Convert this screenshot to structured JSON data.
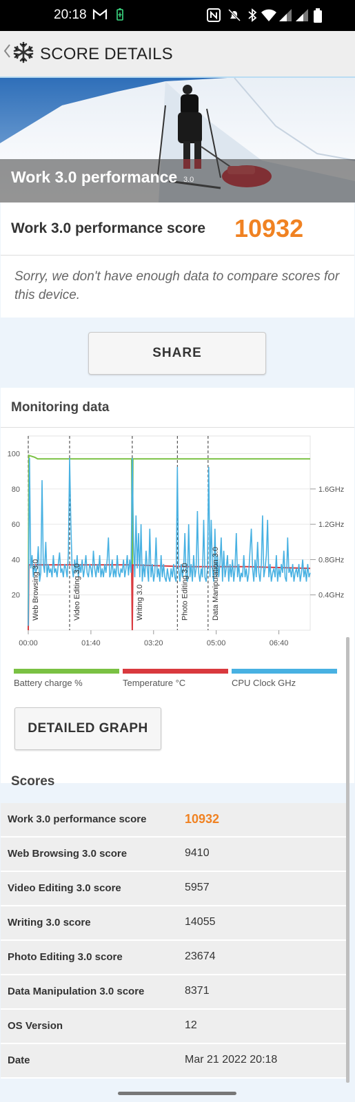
{
  "status_bar": {
    "time": "20:18",
    "icons": [
      "gmail-icon",
      "battery-saver-icon",
      "nfc-icon",
      "mute-icon",
      "bluetooth-icon",
      "wifi-icon",
      "signal-icon",
      "signal-icon",
      "battery-icon"
    ]
  },
  "app_bar": {
    "title": "SCORE DETAILS",
    "back_icon": "chevron-left-icon",
    "logo_icon": "snowflake-icon"
  },
  "hero": {
    "title": "Work 3.0 performance",
    "version": "3.0"
  },
  "score": {
    "label": "Work 3.0 performance score",
    "value": "10932"
  },
  "note": "Sorry, we don't have enough data to compare scores for this device.",
  "share_label": "SHARE",
  "monitoring": {
    "title": "Monitoring data",
    "detailed_graph_label": "DETAILED GRAPH",
    "legend": [
      {
        "label": "Battery charge %",
        "color": "#7ac143"
      },
      {
        "label": "Temperature °C",
        "color": "#d9393e"
      },
      {
        "label": "CPU Clock GHz",
        "color": "#48b1e2"
      }
    ]
  },
  "chart_data": {
    "type": "line",
    "x_ticks": [
      "00:00",
      "01:40",
      "03:20",
      "05:00",
      "06:40"
    ],
    "x_range_seconds": [
      0,
      450
    ],
    "y_left_ticks": [
      "20",
      "40",
      "60",
      "80",
      "100"
    ],
    "y_left_range": [
      0,
      110
    ],
    "y_right_ticks": [
      "0.4GHz",
      "0.8GHz",
      "1.2GHz",
      "1.6GHz"
    ],
    "y_right_range_ghz": [
      0,
      2.2
    ],
    "annotations": [
      {
        "label": "Web Browsing 3.0",
        "x_seconds": 0
      },
      {
        "label": "Video Editing 3.0",
        "x_seconds": 66
      },
      {
        "label": "Writing 3.0",
        "x_seconds": 166
      },
      {
        "label": "Photo Editing 3.0",
        "x_seconds": 238
      },
      {
        "label": "Data Manipulation 3.0",
        "x_seconds": 287
      }
    ],
    "series": [
      {
        "name": "Battery charge %",
        "color": "#7ac143",
        "points": [
          [
            0,
            0
          ],
          [
            1,
            99
          ],
          [
            10,
            98
          ],
          [
            15,
            97
          ],
          [
            165,
            97
          ],
          [
            166,
            15
          ],
          [
            167,
            97
          ],
          [
            450,
            97
          ]
        ]
      },
      {
        "name": "Temperature °C",
        "color": "#d9393e",
        "points": [
          [
            0,
            0
          ],
          [
            1,
            37
          ],
          [
            60,
            37
          ],
          [
            100,
            37
          ],
          [
            165,
            37
          ],
          [
            166,
            0
          ],
          [
            167,
            37
          ],
          [
            250,
            36
          ],
          [
            350,
            36
          ],
          [
            450,
            35
          ]
        ]
      },
      {
        "name": "CPU Clock GHz",
        "color": "#48b1e2",
        "points": [
          [
            0,
            0.05
          ],
          [
            2,
            1.95
          ],
          [
            4,
            0.7
          ],
          [
            6,
            0.85
          ],
          [
            8,
            0.6
          ],
          [
            10,
            0.75
          ],
          [
            12,
            0.65
          ],
          [
            14,
            0.7
          ],
          [
            16,
            0.95
          ],
          [
            18,
            0.55
          ],
          [
            20,
            0.65
          ],
          [
            22,
            1.7
          ],
          [
            24,
            0.75
          ],
          [
            26,
            0.65
          ],
          [
            28,
            1.0
          ],
          [
            30,
            0.6
          ],
          [
            32,
            0.75
          ],
          [
            34,
            0.65
          ],
          [
            36,
            0.7
          ],
          [
            38,
            0.6
          ],
          [
            40,
            0.85
          ],
          [
            42,
            0.65
          ],
          [
            44,
            0.7
          ],
          [
            46,
            0.6
          ],
          [
            48,
            0.75
          ],
          [
            50,
            0.88
          ],
          [
            52,
            0.65
          ],
          [
            54,
            0.7
          ],
          [
            56,
            0.6
          ],
          [
            58,
            0.75
          ],
          [
            60,
            0.7
          ],
          [
            62,
            0.6
          ],
          [
            64,
            0.88
          ],
          [
            66,
            1.95
          ],
          [
            68,
            1.2
          ],
          [
            70,
            0.7
          ],
          [
            72,
            0.6
          ],
          [
            74,
            0.8
          ],
          [
            76,
            0.65
          ],
          [
            78,
            0.85
          ],
          [
            80,
            0.6
          ],
          [
            82,
            0.75
          ],
          [
            84,
            0.65
          ],
          [
            86,
            0.8
          ],
          [
            88,
            0.6
          ],
          [
            90,
            0.7
          ],
          [
            92,
            0.85
          ],
          [
            94,
            0.65
          ],
          [
            96,
            0.6
          ],
          [
            98,
            0.75
          ],
          [
            100,
            0.7
          ],
          [
            102,
            0.6
          ],
          [
            104,
            0.9
          ],
          [
            106,
            0.7
          ],
          [
            108,
            0.6
          ],
          [
            110,
            0.75
          ],
          [
            112,
            0.65
          ],
          [
            114,
            0.85
          ],
          [
            116,
            0.6
          ],
          [
            118,
            0.7
          ],
          [
            120,
            0.6
          ],
          [
            122,
            0.75
          ],
          [
            124,
            0.65
          ],
          [
            126,
            0.8
          ],
          [
            128,
            1.05
          ],
          [
            130,
            0.6
          ],
          [
            132,
            0.65
          ],
          [
            134,
            0.8
          ],
          [
            136,
            0.6
          ],
          [
            138,
            0.7
          ],
          [
            140,
            0.6
          ],
          [
            142,
            0.85
          ],
          [
            144,
            0.65
          ],
          [
            146,
            0.6
          ],
          [
            148,
            0.7
          ],
          [
            150,
            0.65
          ],
          [
            152,
            0.8
          ],
          [
            154,
            0.6
          ],
          [
            156,
            0.7
          ],
          [
            158,
            0.85
          ],
          [
            160,
            0.62
          ],
          [
            162,
            0.8
          ],
          [
            164,
            0.65
          ],
          [
            166,
            1.95
          ],
          [
            168,
            1.0
          ],
          [
            170,
            0.6
          ],
          [
            172,
            1.3
          ],
          [
            174,
            0.7
          ],
          [
            176,
            1.1
          ],
          [
            178,
            0.6
          ],
          [
            180,
            1.2
          ],
          [
            182,
            0.55
          ],
          [
            184,
            0.75
          ],
          [
            186,
            0.6
          ],
          [
            188,
            0.9
          ],
          [
            190,
            0.7
          ],
          [
            192,
            0.55
          ],
          [
            194,
            1.15
          ],
          [
            196,
            0.6
          ],
          [
            198,
            0.75
          ],
          [
            200,
            0.55
          ],
          [
            202,
            0.65
          ],
          [
            204,
            1.05
          ],
          [
            206,
            0.6
          ],
          [
            208,
            0.7
          ],
          [
            210,
            0.55
          ],
          [
            212,
            0.85
          ],
          [
            214,
            0.6
          ],
          [
            216,
            0.75
          ],
          [
            218,
            0.6
          ],
          [
            220,
            0.55
          ],
          [
            222,
            0.7
          ],
          [
            224,
            0.6
          ],
          [
            226,
            0.55
          ],
          [
            228,
            0.7
          ],
          [
            230,
            0.6
          ],
          [
            232,
            0.75
          ],
          [
            234,
            0.6
          ],
          [
            236,
            0.55
          ],
          [
            238,
            1.85
          ],
          [
            240,
            0.7
          ],
          [
            242,
            0.55
          ],
          [
            244,
            0.75
          ],
          [
            246,
            0.6
          ],
          [
            248,
            0.7
          ],
          [
            250,
            1.1
          ],
          [
            252,
            0.6
          ],
          [
            254,
            0.55
          ],
          [
            256,
            1.2
          ],
          [
            258,
            0.6
          ],
          [
            260,
            0.75
          ],
          [
            262,
            0.55
          ],
          [
            264,
            0.85
          ],
          [
            266,
            0.6
          ],
          [
            268,
            0.7
          ],
          [
            270,
            1.35
          ],
          [
            272,
            0.65
          ],
          [
            274,
            0.55
          ],
          [
            276,
            0.7
          ],
          [
            278,
            0.6
          ],
          [
            280,
            1.25
          ],
          [
            282,
            0.6
          ],
          [
            284,
            0.55
          ],
          [
            286,
            0.7
          ],
          [
            288,
            1.85
          ],
          [
            290,
            0.6
          ],
          [
            292,
            1.25
          ],
          [
            294,
            0.7
          ],
          [
            296,
            0.55
          ],
          [
            298,
            1.15
          ],
          [
            300,
            0.6
          ],
          [
            302,
            0.85
          ],
          [
            304,
            0.6
          ],
          [
            306,
            0.75
          ],
          [
            308,
            1.05
          ],
          [
            310,
            0.55
          ],
          [
            312,
            0.9
          ],
          [
            314,
            0.6
          ],
          [
            316,
            0.7
          ],
          [
            318,
            0.85
          ],
          [
            320,
            0.55
          ],
          [
            322,
            0.75
          ],
          [
            324,
            0.6
          ],
          [
            326,
            0.8
          ],
          [
            328,
            0.55
          ],
          [
            330,
            0.7
          ],
          [
            332,
            1.1
          ],
          [
            334,
            0.6
          ],
          [
            336,
            0.75
          ],
          [
            338,
            0.55
          ],
          [
            340,
            0.65
          ],
          [
            342,
            0.6
          ],
          [
            344,
            0.85
          ],
          [
            346,
            0.6
          ],
          [
            348,
            0.7
          ],
          [
            350,
            0.55
          ],
          [
            352,
            0.65
          ],
          [
            354,
            0.9
          ],
          [
            356,
            1.15
          ],
          [
            358,
            0.7
          ],
          [
            360,
            0.55
          ],
          [
            362,
            0.8
          ],
          [
            364,
            0.6
          ],
          [
            366,
            1.0
          ],
          [
            368,
            0.65
          ],
          [
            370,
            0.55
          ],
          [
            372,
            0.75
          ],
          [
            374,
            1.3
          ],
          [
            376,
            0.6
          ],
          [
            378,
            0.7
          ],
          [
            380,
            0.85
          ],
          [
            382,
            1.25
          ],
          [
            384,
            0.6
          ],
          [
            386,
            0.75
          ],
          [
            388,
            0.55
          ],
          [
            390,
            0.65
          ],
          [
            392,
            0.7
          ],
          [
            394,
            0.6
          ],
          [
            396,
            0.85
          ],
          [
            398,
            0.55
          ],
          [
            400,
            0.7
          ],
          [
            402,
            0.6
          ],
          [
            404,
            0.75
          ],
          [
            406,
            0.65
          ],
          [
            408,
            0.9
          ],
          [
            410,
            0.6
          ],
          [
            412,
            0.55
          ],
          [
            414,
            1.05
          ],
          [
            416,
            0.65
          ],
          [
            418,
            0.7
          ],
          [
            420,
            0.6
          ],
          [
            422,
            0.75
          ],
          [
            424,
            0.55
          ],
          [
            426,
            0.65
          ],
          [
            428,
            0.7
          ],
          [
            430,
            0.6
          ],
          [
            432,
            0.75
          ],
          [
            434,
            0.55
          ],
          [
            436,
            0.65
          ],
          [
            438,
            0.8
          ],
          [
            440,
            0.6
          ],
          [
            442,
            0.7
          ],
          [
            444,
            0.55
          ],
          [
            446,
            0.75
          ],
          [
            448,
            0.6
          ],
          [
            450,
            0.65
          ]
        ]
      }
    ]
  },
  "scores": {
    "title": "Scores",
    "rows": [
      {
        "label": "Work 3.0 performance score",
        "value": "10932"
      },
      {
        "label": "Web Browsing 3.0 score",
        "value": "9410"
      },
      {
        "label": "Video Editing 3.0 score",
        "value": "5957"
      },
      {
        "label": "Writing 3.0 score",
        "value": "14055"
      },
      {
        "label": "Photo Editing 3.0 score",
        "value": "23674"
      },
      {
        "label": "Data Manipulation 3.0 score",
        "value": "8371"
      },
      {
        "label": "OS Version",
        "value": "12"
      },
      {
        "label": "Date",
        "value": "Mar 21 2022 20:18"
      }
    ]
  }
}
